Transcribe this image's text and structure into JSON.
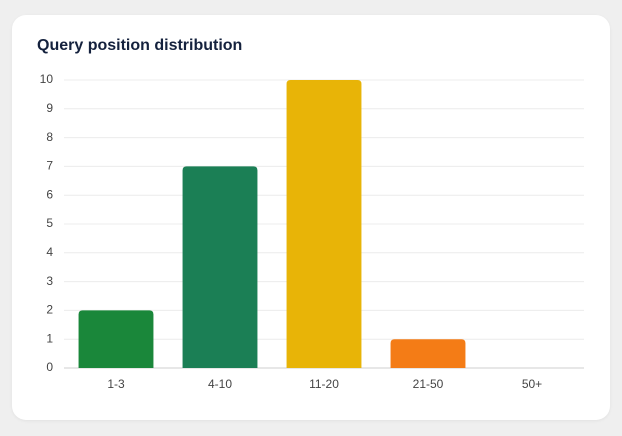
{
  "chart_data": {
    "type": "bar",
    "title": "Query position distribution",
    "categories": [
      "1-3",
      "4-10",
      "11-20",
      "21-50",
      "50+"
    ],
    "values": [
      2,
      7,
      10,
      1,
      0
    ],
    "colors": [
      "#1a873a",
      "#1b7f55",
      "#e8b407",
      "#f47c16",
      "#9e9e9e"
    ],
    "ylim": [
      0,
      10
    ],
    "yticks": [
      0,
      1,
      2,
      3,
      4,
      5,
      6,
      7,
      8,
      9,
      10
    ],
    "grid": true
  }
}
